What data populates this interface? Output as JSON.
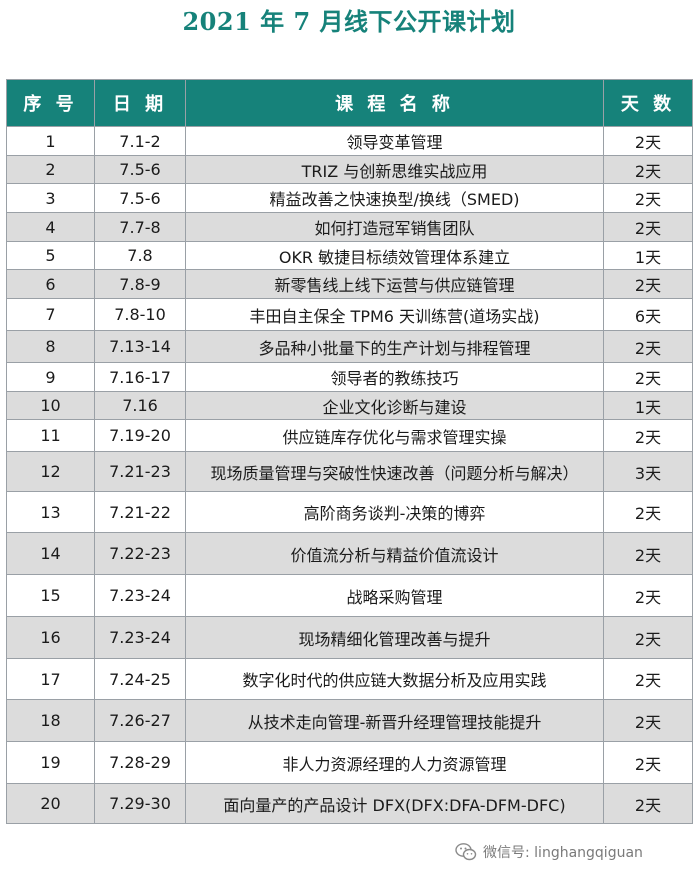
{
  "title": "2021 年 7 月线下公开课计划",
  "table": {
    "headers": [
      "序 号",
      "日 期",
      "课 程 名 称",
      "天 数"
    ],
    "rows": [
      {
        "no": "1",
        "date": "7.1-2",
        "name": "领导变革管理",
        "days": "2天"
      },
      {
        "no": "2",
        "date": "7.5-6",
        "name": "TRIZ 与创新思维实战应用",
        "days": "2天"
      },
      {
        "no": "3",
        "date": "7.5-6",
        "name": "精益改善之快速换型/换线（SMED)",
        "days": "2天"
      },
      {
        "no": "4",
        "date": "7.7-8",
        "name": "如何打造冠军销售团队",
        "days": "2天"
      },
      {
        "no": "5",
        "date": "7.8",
        "name": "OKR 敏捷目标绩效管理体系建立",
        "days": "1天"
      },
      {
        "no": "6",
        "date": "7.8-9",
        "name": "新零售线上线下运营与供应链管理",
        "days": "2天"
      },
      {
        "no": "7",
        "date": "7.8-10",
        "name": "丰田自主保全 TPM6 天训练营(道场实战)",
        "days": "6天"
      },
      {
        "no": "8",
        "date": "7.13-14",
        "name": "多品种小批量下的生产计划与排程管理",
        "days": "2天"
      },
      {
        "no": "9",
        "date": "7.16-17",
        "name": "领导者的教练技巧",
        "days": "2天"
      },
      {
        "no": "10",
        "date": "7.16",
        "name": "企业文化诊断与建设",
        "days": "1天"
      },
      {
        "no": "11",
        "date": "7.19-20",
        "name": "供应链库存优化与需求管理实操",
        "days": "2天"
      },
      {
        "no": "12",
        "date": "7.21-23",
        "name": "现场质量管理与突破性快速改善（问题分析与解决）",
        "days": "3天"
      },
      {
        "no": "13",
        "date": "7.21-22",
        "name": "高阶商务谈判-决策的博弈",
        "days": "2天"
      },
      {
        "no": "14",
        "date": "7.22-23",
        "name": "价值流分析与精益价值流设计",
        "days": "2天"
      },
      {
        "no": "15",
        "date": "7.23-24",
        "name": "战略采购管理",
        "days": "2天"
      },
      {
        "no": "16",
        "date": "7.23-24",
        "name": "现场精细化管理改善与提升",
        "days": "2天"
      },
      {
        "no": "17",
        "date": "7.24-25",
        "name": "数字化时代的供应链大数据分析及应用实践",
        "days": "2天"
      },
      {
        "no": "18",
        "date": "7.26-27",
        "name": "从技术走向管理-新晋升经理管理技能提升",
        "days": "2天"
      },
      {
        "no": "19",
        "date": "7.28-29",
        "name": "非人力资源经理的人力资源管理",
        "days": "2天"
      },
      {
        "no": "20",
        "date": "7.29-30",
        "name": "面向量产的产品设计 DFX(DFX:DFA-DFM-DFC)",
        "days": "2天"
      }
    ]
  },
  "watermark": {
    "text": "微信号: linghangqiguan",
    "icon": "wechat-icon"
  }
}
